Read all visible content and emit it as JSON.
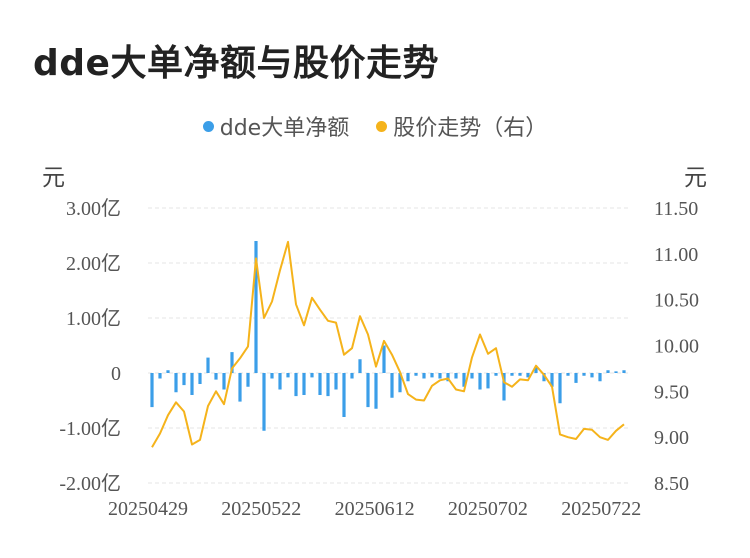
{
  "title": "dde大单净额与股价走势",
  "legend": [
    {
      "label": "dde大单净额",
      "color": "#3b9ee8"
    },
    {
      "label": "股价走势（右）",
      "color": "#f5b31b"
    }
  ],
  "units": {
    "left": "元",
    "right": "元"
  },
  "chart_data": {
    "type": "bar+line",
    "title": "dde大单净额与股价走势",
    "x_tick_labels": [
      "20250429",
      "20250522",
      "20250612",
      "20250702",
      "20250722"
    ],
    "left_axis": {
      "ticks": [
        "3.00亿",
        "2.00亿",
        "1.00亿",
        "0",
        "-1.00亿",
        "-2.00亿"
      ],
      "range": [
        -2.0,
        3.0
      ],
      "unit": "亿元"
    },
    "right_axis": {
      "ticks": [
        "11.50",
        "11.00",
        "10.50",
        "10.00",
        "9.50",
        "9.00",
        "8.50"
      ],
      "range": [
        8.5,
        11.5
      ],
      "unit": "元"
    },
    "gridlines": true,
    "legend_position": "top",
    "series": [
      {
        "name": "dde大单净额",
        "type": "bar",
        "axis": "left",
        "color": "#3b9ee8",
        "values": [
          -0.62,
          -0.1,
          0.05,
          -0.35,
          -0.22,
          -0.4,
          -0.2,
          0.28,
          -0.12,
          -0.3,
          0.38,
          -0.52,
          -0.25,
          2.4,
          -1.05,
          -0.1,
          -0.3,
          -0.08,
          -0.42,
          -0.4,
          -0.08,
          -0.4,
          -0.42,
          -0.3,
          -0.8,
          -0.1,
          0.25,
          -0.62,
          -0.65,
          0.5,
          -0.45,
          -0.35,
          -0.15,
          -0.05,
          -0.1,
          -0.08,
          -0.1,
          -0.15,
          -0.1,
          -0.25,
          -0.1,
          -0.3,
          -0.28,
          -0.05,
          -0.5,
          -0.05,
          -0.05,
          -0.08,
          0.1,
          -0.15,
          -0.25,
          -0.55,
          -0.05,
          -0.18,
          -0.05,
          -0.08,
          -0.15,
          0.05,
          0.03,
          0.05
        ]
      },
      {
        "name": "股价走势（右）",
        "type": "line",
        "axis": "right",
        "color": "#f5b31b",
        "values": [
          8.89,
          9.04,
          9.24,
          9.38,
          9.28,
          8.92,
          8.97,
          9.34,
          9.5,
          9.36,
          9.75,
          9.86,
          9.99,
          10.95,
          10.3,
          10.48,
          10.82,
          11.13,
          10.45,
          10.22,
          10.52,
          10.39,
          10.27,
          10.25,
          9.9,
          9.97,
          10.32,
          10.12,
          9.77,
          10.05,
          9.9,
          9.71,
          9.47,
          9.41,
          9.4,
          9.56,
          9.62,
          9.64,
          9.52,
          9.5,
          9.87,
          10.12,
          9.91,
          9.97,
          9.6,
          9.55,
          9.63,
          9.62,
          9.78,
          9.68,
          9.55,
          9.03,
          9.0,
          8.98,
          9.09,
          9.08,
          9.0,
          8.97,
          9.07,
          9.14
        ]
      }
    ]
  }
}
